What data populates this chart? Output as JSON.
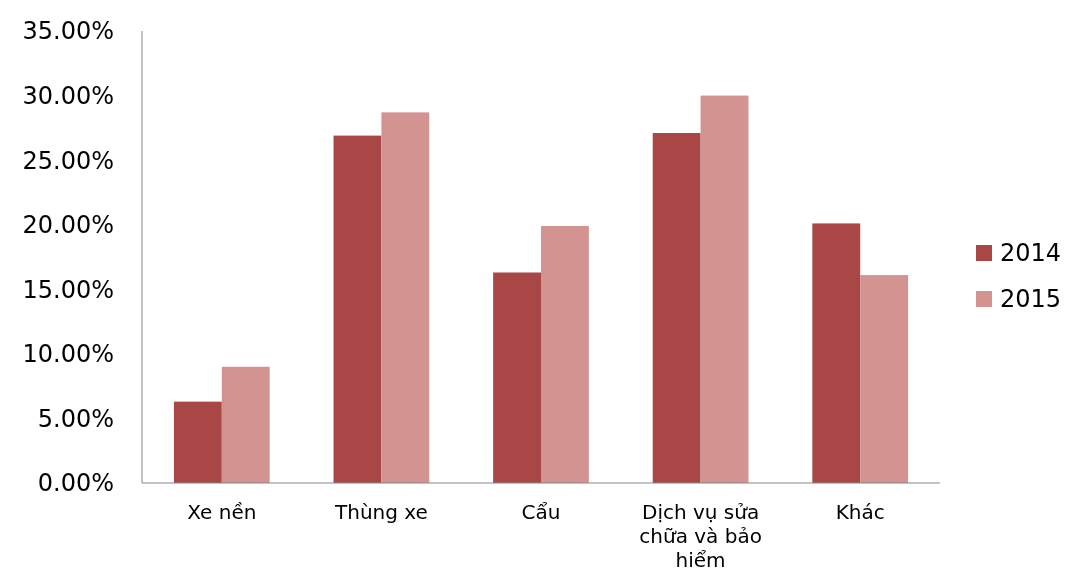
{
  "chart_data": {
    "type": "bar",
    "categories": [
      "Xe nền",
      "Thùng xe",
      "Cẩu",
      "Dịch vụ sửa chữa và bảo hiểm",
      "Khác"
    ],
    "series": [
      {
        "name": "2014",
        "color": "#a84745",
        "values": [
          6.3,
          26.9,
          16.3,
          27.1,
          20.1
        ]
      },
      {
        "name": "2015",
        "color": "#d39391",
        "values": [
          9.0,
          28.7,
          19.9,
          30.0,
          16.1
        ]
      }
    ],
    "ylim": [
      0,
      35
    ],
    "yticks": [
      {
        "value": 0,
        "label": "0.00%"
      },
      {
        "value": 5,
        "label": "5.00%"
      },
      {
        "value": 10,
        "label": "10.00%"
      },
      {
        "value": 15,
        "label": "15.00%"
      },
      {
        "value": 20,
        "label": "20.00%"
      },
      {
        "value": 25,
        "label": "25.00%"
      },
      {
        "value": 30,
        "label": "30.00%"
      },
      {
        "value": 35,
        "label": "35.00%"
      }
    ],
    "grid": false,
    "legend": "right"
  }
}
